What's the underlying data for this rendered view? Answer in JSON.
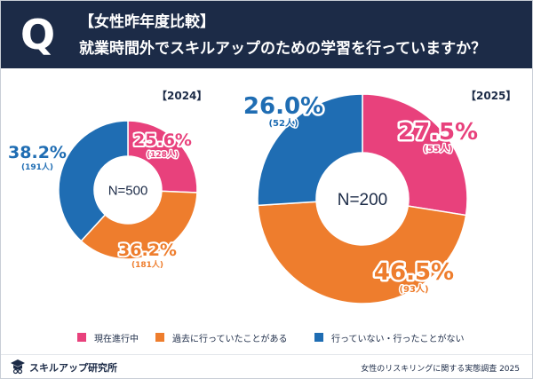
{
  "header": {
    "q_mark": "Q",
    "line1": "【女性昨年度比較】",
    "line2": "就業時間外でスキルアップのための学習を行っていますか？"
  },
  "chart_data": [
    {
      "type": "pie",
      "title": "【2024】",
      "center_label": "N=500",
      "categories": [
        "現在進行中",
        "過去に行っていたことがある",
        "行っていない・行ったことがない"
      ],
      "values": [
        25.6,
        36.2,
        38.2
      ],
      "counts": [
        "(128人)",
        "(181人)",
        "(191人)"
      ],
      "labels": [
        "25.6%",
        "36.2%",
        "38.2%"
      ]
    },
    {
      "type": "pie",
      "title": "【2025】",
      "center_label": "N=200",
      "categories": [
        "現在進行中",
        "過去に行っていたことがある",
        "行っていない・行ったことがない"
      ],
      "values": [
        27.5,
        46.5,
        26.0
      ],
      "counts": [
        "(55人)",
        "(93人)",
        "(52人)"
      ],
      "labels": [
        "27.5%",
        "46.5%",
        "26.0%"
      ]
    }
  ],
  "colors": {
    "current": "#e8417c",
    "past": "#ee7d2d",
    "never": "#1f6db3",
    "navy": "#1c2b47"
  },
  "legend": {
    "items": [
      {
        "label": "現在進行中",
        "color": "#e8417c"
      },
      {
        "label": "過去に行っていたことがある",
        "color": "#ee7d2d"
      },
      {
        "label": "行っていない・行ったことがない",
        "color": "#1f6db3"
      }
    ]
  },
  "footer": {
    "logo_text": "スキルアップ研究所",
    "logo_icon": "graduation-cap-icon",
    "source": "女性のリスキリングに関する実態調査 2025"
  }
}
